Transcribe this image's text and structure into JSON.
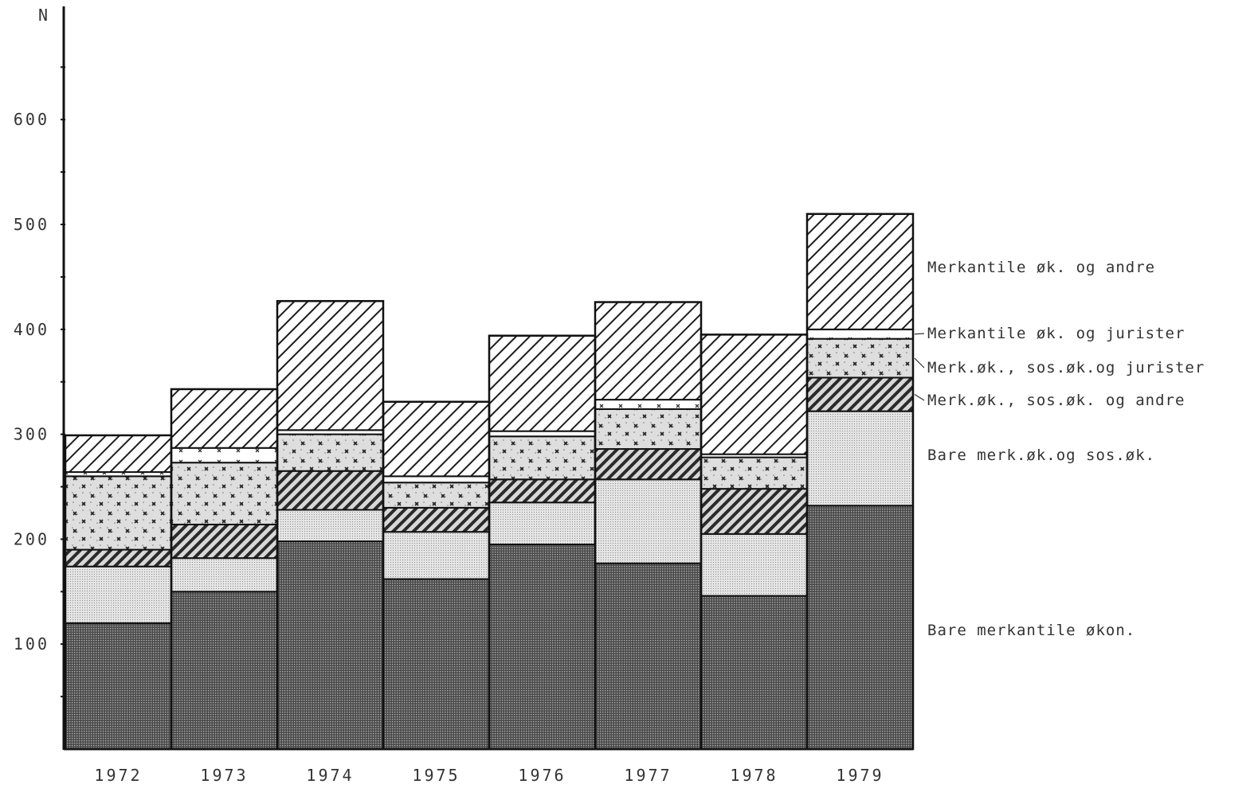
{
  "chart_data": {
    "type": "bar",
    "stacked": true,
    "yaxis_label": "N",
    "categories": [
      "1972",
      "1973",
      "1974",
      "1975",
      "1976",
      "1977",
      "1978",
      "1979"
    ],
    "ylim": [
      0,
      700
    ],
    "yticks": [
      "100",
      "200",
      "300",
      "400",
      "500",
      "600"
    ],
    "ytick_values": [
      100,
      200,
      300,
      400,
      500,
      600
    ],
    "grid": false,
    "legend_placement": "right",
    "series": [
      {
        "name": "Bare merkantile økon.",
        "pattern": "dense-dots",
        "values": [
          120,
          150,
          198,
          162,
          195,
          177,
          146,
          232
        ]
      },
      {
        "name": "Bare merk.øk.og sos.øk.",
        "pattern": "light-dots",
        "values": [
          54,
          32,
          30,
          45,
          40,
          80,
          59,
          90
        ]
      },
      {
        "name": "Merk.øk., sos.øk. og andre",
        "pattern": "diagonal-hatch",
        "values": [
          16,
          32,
          37,
          23,
          22,
          29,
          43,
          32
        ]
      },
      {
        "name": "Merk.øk., sos.øk.og jurister",
        "pattern": "dots-crosses",
        "values": [
          70,
          59,
          35,
          24,
          41,
          38,
          30,
          37
        ]
      },
      {
        "name": "Merkantile øk. og jurister",
        "pattern": "crosses",
        "values": [
          4,
          14,
          4,
          6,
          5,
          9,
          3,
          9
        ]
      },
      {
        "name": "Merkantile øk. og andre",
        "pattern": "wide-hatch",
        "values": [
          35,
          56,
          123,
          71,
          91,
          93,
          114,
          110
        ]
      }
    ]
  }
}
